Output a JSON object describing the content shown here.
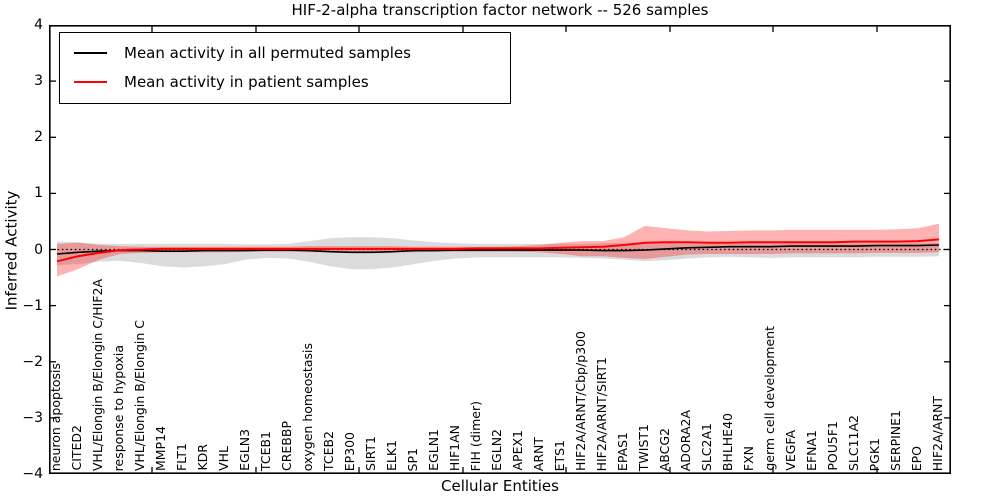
{
  "chart_data": {
    "type": "line",
    "title": "HIF-2-alpha transcription factor network -- 526 samples",
    "xlabel": "Cellular Entities",
    "ylabel": "Inferred Activity",
    "ylim": [
      -4,
      4
    ],
    "yticks": [
      4,
      3,
      2,
      1,
      0,
      -1,
      -2,
      -3,
      -4
    ],
    "grid": false,
    "legend_position": "upper-left",
    "zero_reference_line": "dotted",
    "categories": [
      "neuron apoptosis",
      "CITED2",
      "VHL/Elongin B/Elongin C/HIF2A",
      "response to hypoxia",
      "VHL/Elongin B/Elongin C",
      "MMP14",
      "FLT1",
      "KDR",
      "VHL",
      "EGLN3",
      "TCEB1",
      "CREBBP",
      "oxygen homeostasis",
      "TCEB2",
      "EP300",
      "SIRT1",
      "ELK1",
      "SP1",
      "EGLN1",
      "HIF1AN",
      "FIH (dimer)",
      "EGLN2",
      "APEX1",
      "ARNT",
      "ETS1",
      "HIF2A/ARNT/Cbp/p300",
      "HIF2A/ARNT/SIRT1",
      "EPAS1",
      "TWIST1",
      "ABCG2",
      "ADORA2A",
      "SLC2A1",
      "BHLHE40",
      "FXN",
      "germ cell development",
      "VEGFA",
      "EFNA1",
      "POU5F1",
      "SLC11A2",
      "PGK1",
      "SERPINE1",
      "EPO",
      "HIF2A/ARNT"
    ],
    "series": [
      {
        "name": "Mean activity in all permuted samples",
        "color": "#000000",
        "band_color": "rgba(0,0,0,0.14)",
        "values": [
          -0.08,
          -0.05,
          -0.03,
          -0.02,
          -0.02,
          -0.03,
          -0.03,
          -0.02,
          -0.02,
          -0.02,
          -0.01,
          -0.01,
          -0.02,
          -0.04,
          -0.05,
          -0.05,
          -0.04,
          -0.02,
          -0.02,
          -0.01,
          -0.01,
          -0.01,
          -0.01,
          -0.01,
          -0.01,
          -0.01,
          -0.02,
          -0.02,
          -0.01,
          0.01,
          0.03,
          0.04,
          0.05,
          0.05,
          0.05,
          0.06,
          0.06,
          0.06,
          0.06,
          0.07,
          0.07,
          0.07,
          0.08
        ],
        "band_high": [
          0.14,
          0.13,
          0.1,
          0.1,
          0.1,
          0.1,
          0.1,
          0.1,
          0.1,
          0.09,
          0.09,
          0.1,
          0.15,
          0.2,
          0.22,
          0.22,
          0.2,
          0.16,
          0.13,
          0.11,
          0.1,
          0.1,
          0.1,
          0.1,
          0.1,
          0.1,
          0.11,
          0.12,
          0.13,
          0.12,
          0.1,
          0.1,
          0.1,
          0.1,
          0.1,
          0.11,
          0.11,
          0.11,
          0.11,
          0.11,
          0.11,
          0.11,
          0.12
        ],
        "band_low": [
          -0.28,
          -0.26,
          -0.22,
          -0.2,
          -0.24,
          -0.3,
          -0.32,
          -0.3,
          -0.26,
          -0.18,
          -0.15,
          -0.16,
          -0.22,
          -0.3,
          -0.35,
          -0.35,
          -0.32,
          -0.26,
          -0.2,
          -0.16,
          -0.14,
          -0.14,
          -0.14,
          -0.14,
          -0.14,
          -0.15,
          -0.16,
          -0.18,
          -0.21,
          -0.19,
          -0.16,
          -0.14,
          -0.13,
          -0.14,
          -0.15,
          -0.14,
          -0.14,
          -0.14,
          -0.14,
          -0.13,
          -0.13,
          -0.13,
          -0.12
        ]
      },
      {
        "name": "Mean activity in patient samples",
        "color": "#ff0000",
        "band_color": "rgba(255,0,0,0.30)",
        "values": [
          -0.21,
          -0.12,
          -0.06,
          -0.01,
          0.0,
          0.01,
          0.01,
          0.01,
          0.01,
          0.01,
          0.01,
          0.01,
          0.01,
          0.01,
          0.01,
          0.01,
          0.01,
          0.01,
          0.01,
          0.01,
          0.02,
          0.02,
          0.02,
          0.02,
          0.03,
          0.04,
          0.05,
          0.08,
          0.12,
          0.13,
          0.13,
          0.12,
          0.12,
          0.13,
          0.13,
          0.13,
          0.13,
          0.13,
          0.14,
          0.14,
          0.14,
          0.15,
          0.18
        ],
        "band_high": [
          0.1,
          0.12,
          0.08,
          0.06,
          0.05,
          0.05,
          0.05,
          0.05,
          0.05,
          0.05,
          0.05,
          0.05,
          0.06,
          0.06,
          0.06,
          0.06,
          0.06,
          0.05,
          0.05,
          0.05,
          0.05,
          0.05,
          0.06,
          0.08,
          0.12,
          0.15,
          0.15,
          0.22,
          0.42,
          0.38,
          0.34,
          0.32,
          0.33,
          0.34,
          0.34,
          0.35,
          0.35,
          0.35,
          0.35,
          0.35,
          0.36,
          0.38,
          0.46
        ],
        "band_low": [
          -0.48,
          -0.35,
          -0.18,
          -0.08,
          -0.06,
          -0.05,
          -0.05,
          -0.05,
          -0.05,
          -0.04,
          -0.04,
          -0.04,
          -0.05,
          -0.05,
          -0.06,
          -0.06,
          -0.05,
          -0.05,
          -0.04,
          -0.04,
          -0.04,
          -0.04,
          -0.04,
          -0.05,
          -0.08,
          -0.12,
          -0.12,
          -0.15,
          -0.17,
          -0.13,
          -0.09,
          -0.08,
          -0.08,
          -0.08,
          -0.08,
          -0.07,
          -0.07,
          -0.07,
          -0.07,
          -0.06,
          -0.06,
          -0.06,
          -0.05
        ]
      }
    ]
  }
}
